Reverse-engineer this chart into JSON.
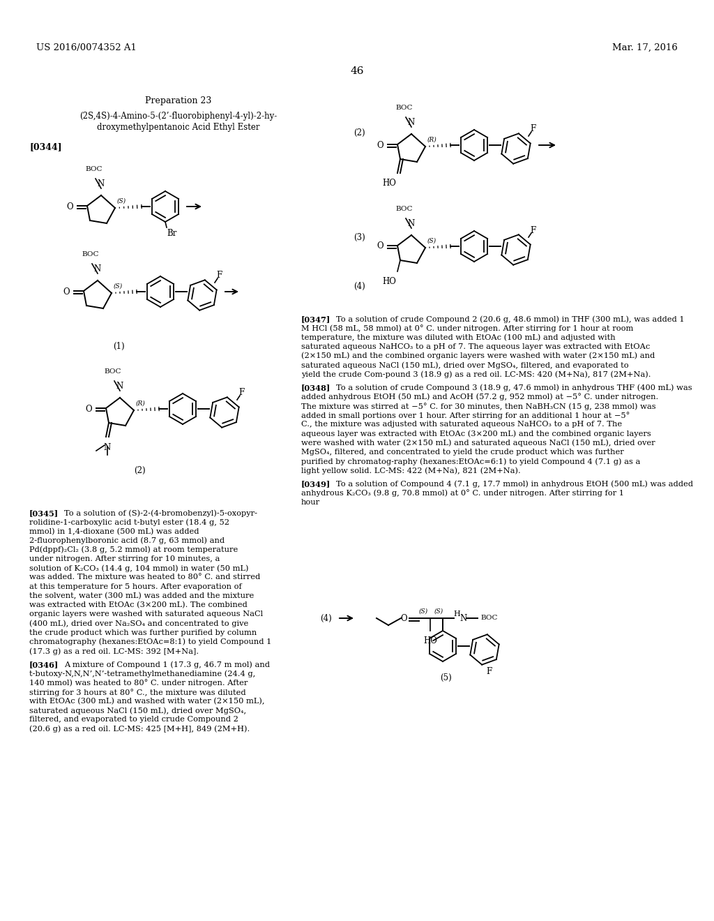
{
  "page_number": "46",
  "patent_number": "US 2016/0074352 A1",
  "patent_date": "Mar. 17, 2016",
  "preparation_title": "Preparation 23",
  "compound_title_line1": "(2S,4S)-4-Amino-5-(2’-fluorobiphenyl-4-yl)-2-hy-",
  "compound_title_line2": "droxymethylpentanoic Acid Ethyl Ester",
  "paragraph_tag_0344": "[0344]",
  "background_color": "#ffffff",
  "text_color": "#000000",
  "body_paragraphs_left": [
    {
      "tag": "[0345]",
      "text": "To a solution of (S)-2-(4-bromobenzyl)-5-oxopyr-rolidine-1-carboxylic acid t-butyl ester (18.4 g, 52 mmol) in 1,4-dioxane (500 mL) was added 2-fluorophenylboronic acid (8.7 g, 63 mmol) and Pd(dppf)₂Cl₂ (3.8 g, 5.2 mmol) at room temperature under nitrogen. After stirring for 10 minutes, a solution of K₂CO₃ (14.4 g, 104 mmol) in water (50 mL) was added. The mixture was heated to 80° C. and stirred at this temperature for 5 hours. After evaporation of the solvent, water (300 mL) was added and the mixture was extracted with EtOAc (3×200 mL). The combined organic layers were washed with saturated aqueous NaCl (400 mL), dried over Na₂SO₄ and concentrated to give the crude product which was further purified by column chromatography (hexanes:EtOAc=8:1) to yield Compound 1 (17.3 g) as a red oil. LC-MS: 392 [M+Na]."
    },
    {
      "tag": "[0346]",
      "text": "A mixture of Compound 1 (17.3 g, 46.7 m mol) and t-butoxy-N,N,N’,N’-tetramethylmethanediamine (24.4 g, 140 mmol) was heated to 80° C. under nitrogen. After stirring for 3 hours at 80° C., the mixture was diluted with EtOAc (300 mL) and washed with water (2×150 mL), saturated aqueous NaCl (150 mL), dried over MgSO₄, filtered, and evaporated to yield crude Compound 2 (20.6 g) as a red oil. LC-MS: 425 [M+H], 849 (2M+H)."
    }
  ],
  "body_paragraphs_right": [
    {
      "tag": "[0347]",
      "text": "To a solution of crude Compound 2 (20.6 g, 48.6 mmol) in THF (300 mL), was added 1 M HCl (58 mL, 58 mmol) at 0° C. under nitrogen. After stirring for 1 hour at room temperature, the mixture was diluted with EtOAc (100 mL) and adjusted with saturated aqueous NaHCO₃ to a pH of 7. The aqueous layer was extracted with EtOAc (2×150 mL) and the combined organic layers were washed with water (2×150 mL) and saturated aqueous NaCl (150 mL), dried over MgSO₄, filtered, and evaporated to yield the crude Com-pound 3 (18.9 g) as a red oil. LC-MS: 420 (M+Na), 817 (2M+Na)."
    },
    {
      "tag": "[0348]",
      "text": "To a solution of crude Compound 3 (18.9 g, 47.6 mmol) in anhydrous THF (400 mL) was added anhydrous EtOH (50 mL) and AcOH (57.2 g, 952 mmol) at −5° C. under nitrogen. The mixture was stirred at −5° C. for 30 minutes, then NaBH₃CN (15 g, 238 mmol) was added in small portions over 1 hour. After stirring for an additional 1 hour at −5° C., the mixture was adjusted with saturated aqueous NaHCO₃ to a pH of 7. The aqueous layer was extracted with EtOAc (3×200 mL) and the combined organic layers were washed with water (2×150 mL) and saturated aqueous NaCl (150 mL), dried over MgSO₄, filtered, and concentrated to yield the crude product which was further purified by chromatog-raphy (hexanes:EtOAc=6:1) to yield Compound 4 (7.1 g) as a light yellow solid. LC-MS: 422 (M+Na), 821 (2M+Na)."
    },
    {
      "tag": "[0349]",
      "text": "To a solution of Compound 4 (7.1 g, 17.7 mmol) in anhydrous EtOH (500 mL) was added anhydrous K₂CO₃ (9.8 g, 70.8 mmol) at 0° C. under nitrogen. After stirring for 1 hour"
    }
  ]
}
